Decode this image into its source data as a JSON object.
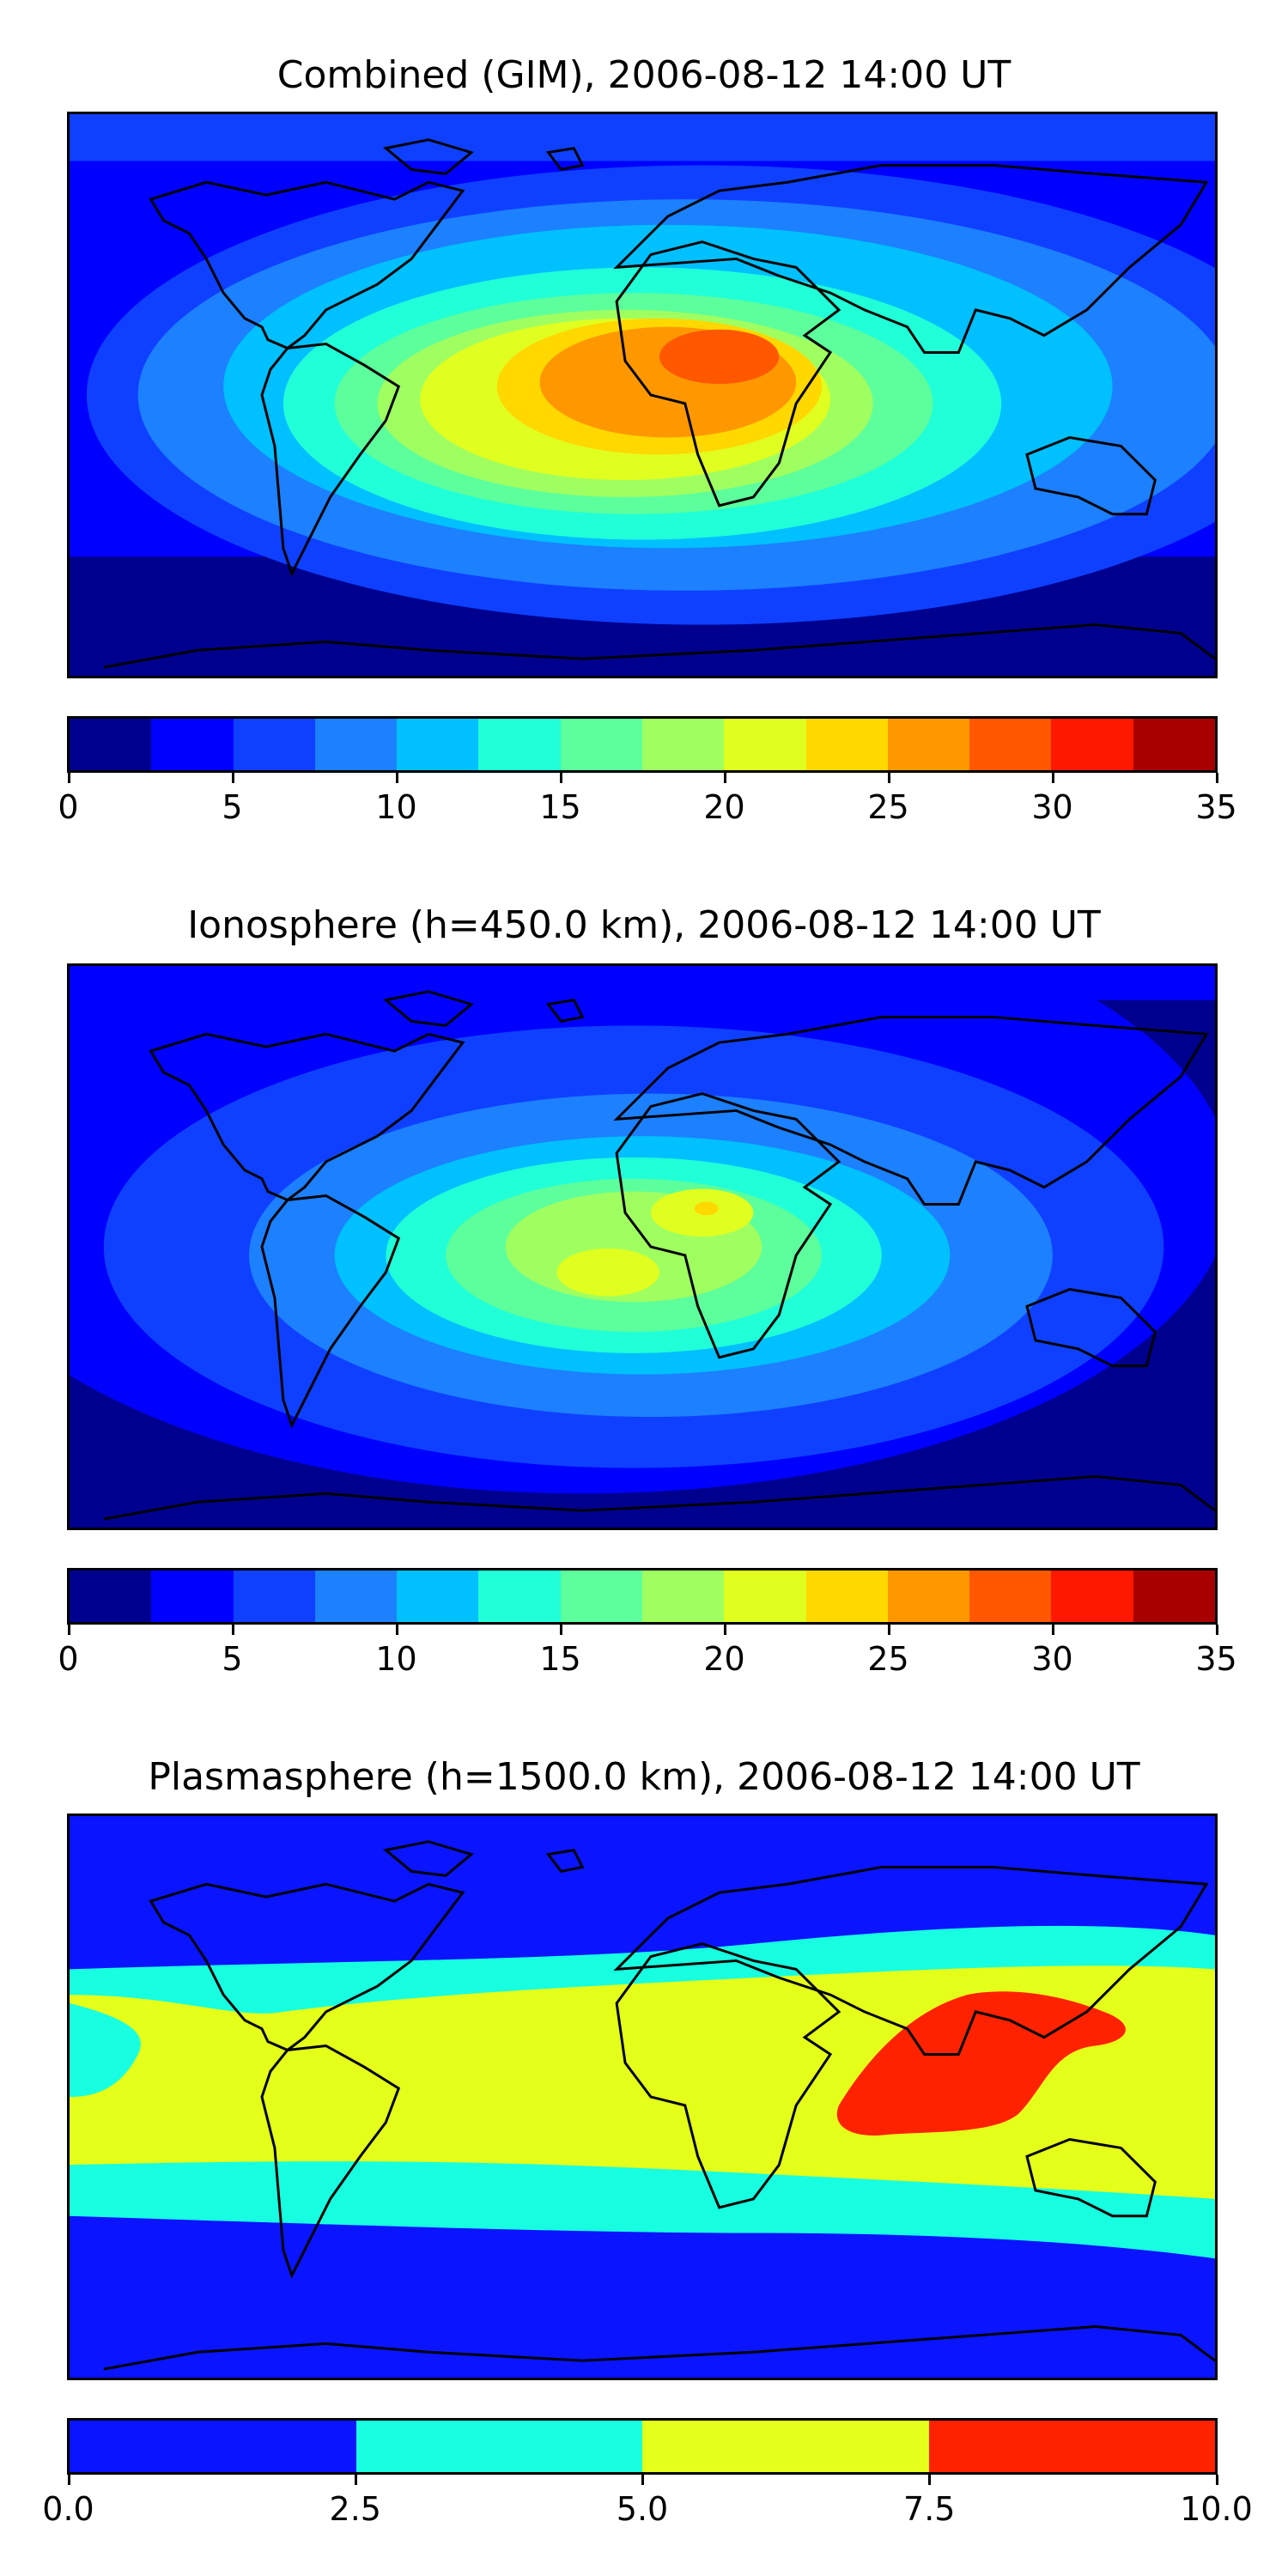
{
  "panels": [
    {
      "title": "Combined (GIM), 2006-08-12 14:00 UT",
      "colorbar": {
        "colors": [
          "#00008f",
          "#0000ff",
          "#0f40ff",
          "#1c80ff",
          "#00c0ff",
          "#20ffd8",
          "#5cff9c",
          "#a0ff60",
          "#e0ff20",
          "#ffd800",
          "#ff9800",
          "#ff5800",
          "#ff1800",
          "#a80000"
        ],
        "ticks": [
          "0",
          "5",
          "10",
          "15",
          "20",
          "25",
          "30",
          "35"
        ]
      }
    },
    {
      "title": "Ionosphere  (h=450.0 km), 2006-08-12 14:00 UT",
      "colorbar": {
        "colors": [
          "#00008f",
          "#0000ff",
          "#0f40ff",
          "#1c80ff",
          "#00c0ff",
          "#20ffd8",
          "#5cff9c",
          "#a0ff60",
          "#e0ff20",
          "#ffd800",
          "#ff9800",
          "#ff5800",
          "#ff1800",
          "#a80000"
        ],
        "ticks": [
          "0",
          "5",
          "10",
          "15",
          "20",
          "25",
          "30",
          "35"
        ]
      }
    },
    {
      "title": "Plasmasphere (h=1500.0 km), 2006-08-12 14:00 UT",
      "colorbar": {
        "colors": [
          "#0a14ff",
          "#17ffe0",
          "#e4ff1a",
          "#ff2200"
        ],
        "ticks": [
          "0.0",
          "2.5",
          "5.0",
          "7.5",
          "10.0"
        ]
      }
    }
  ]
}
